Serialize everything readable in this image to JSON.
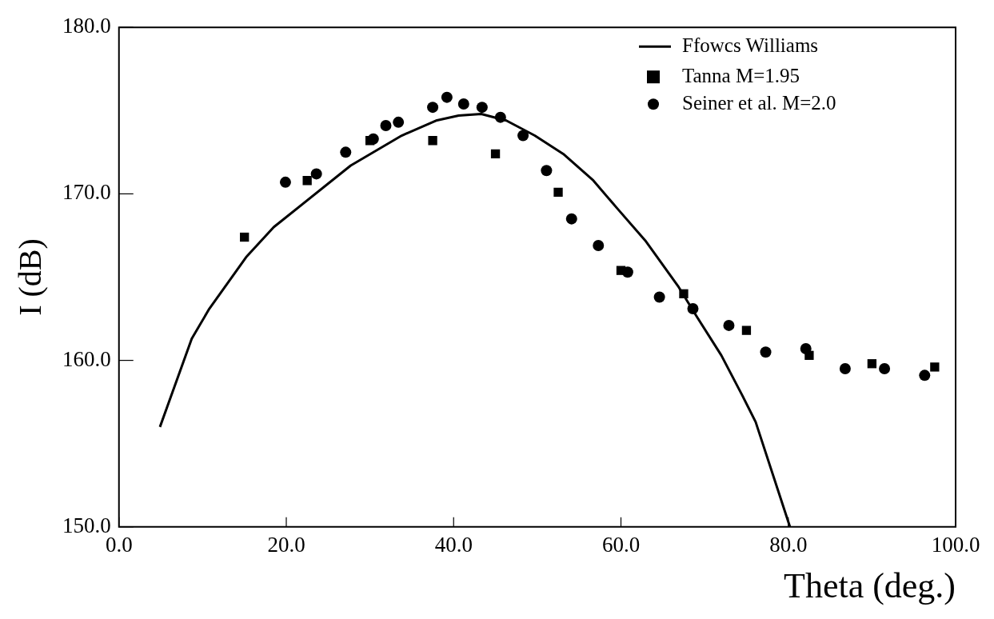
{
  "chart_data": {
    "type": "scatter",
    "xlabel": "Theta (deg.)",
    "ylabel": "I (dB)",
    "xlim": [
      0,
      100
    ],
    "ylim": [
      150,
      180
    ],
    "xticks": [
      {
        "value": 0,
        "label": "0.0"
      },
      {
        "value": 20,
        "label": "20.0"
      },
      {
        "value": 40,
        "label": "40.0"
      },
      {
        "value": 60,
        "label": "60.0"
      },
      {
        "value": 80,
        "label": "80.0"
      },
      {
        "value": 100,
        "label": "100.0"
      }
    ],
    "yticks": [
      {
        "value": 150,
        "label": "150.0"
      },
      {
        "value": 160,
        "label": "160.0"
      },
      {
        "value": 170,
        "label": "170.0"
      },
      {
        "value": 180,
        "label": "180.0"
      }
    ],
    "grid": false,
    "legend": "top right",
    "series": [
      {
        "name": "Ffowcs Williams",
        "type": "line",
        "color": "#000000",
        "marker": "none",
        "line_style": "solid",
        "x": [
          4.9,
          8.7,
          10.8,
          15.2,
          18.5,
          27.7,
          33.8,
          37.9,
          40.6,
          43.3,
          46.3,
          49.7,
          53.1,
          56.7,
          59.6,
          62.9,
          66.9,
          69.1,
          72.0,
          74.5,
          76.1,
          80.2
        ],
        "values": [
          156.0,
          161.3,
          163.1,
          166.2,
          168.0,
          171.7,
          173.5,
          174.4,
          174.7,
          174.8,
          174.4,
          173.5,
          172.4,
          170.8,
          169.1,
          167.2,
          164.4,
          162.6,
          160.3,
          157.9,
          156.3,
          150.0
        ]
      },
      {
        "name": "Tanna M=1.95",
        "color": "#000000",
        "marker": "square",
        "x": [
          15,
          22.5,
          30,
          37.5,
          45,
          52.5,
          60,
          67.5,
          75,
          82.5,
          90,
          97.5
        ],
        "values": [
          167.4,
          170.8,
          173.2,
          173.2,
          172.4,
          170.1,
          165.4,
          164.0,
          161.8,
          160.3,
          159.8,
          159.6
        ]
      },
      {
        "name": "Seiner et al. M=2.0",
        "color": "#000000",
        "marker": "circle",
        "x": [
          19.9,
          23.6,
          27.1,
          30.4,
          31.9,
          33.4,
          37.5,
          39.2,
          41.2,
          43.4,
          45.6,
          48.3,
          51.1,
          54.1,
          57.3,
          60.8,
          64.6,
          68.6,
          72.9,
          77.3,
          82.1,
          86.8,
          91.5,
          96.3
        ],
        "values": [
          170.7,
          171.2,
          172.5,
          173.3,
          174.1,
          174.3,
          175.2,
          175.8,
          175.4,
          175.2,
          174.6,
          173.5,
          171.4,
          168.5,
          166.9,
          165.3,
          163.8,
          163.1,
          162.1,
          160.5,
          160.7,
          159.5,
          159.5,
          159.1
        ]
      }
    ]
  }
}
